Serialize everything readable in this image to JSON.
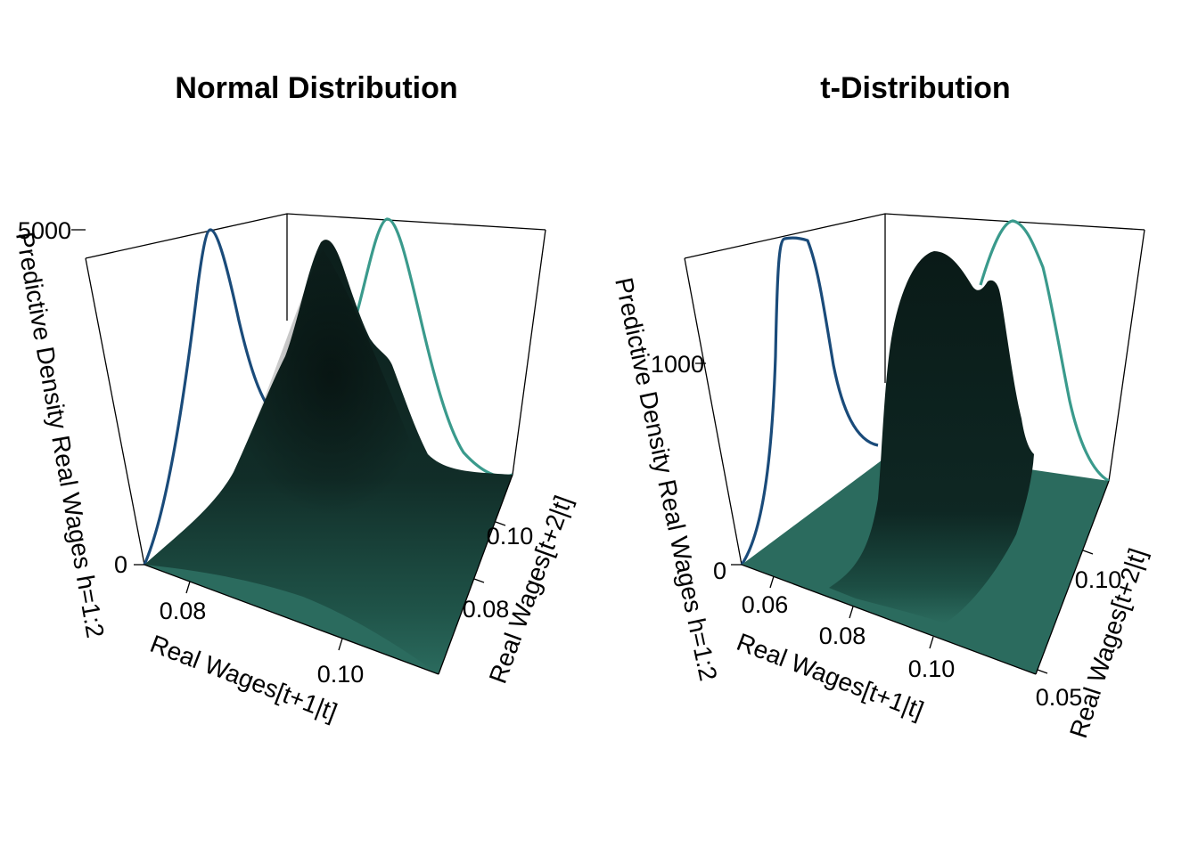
{
  "chart_data": [
    {
      "type": "surface3d",
      "title": "Normal Distribution",
      "xlabel": "Real Wages[t+1|t]",
      "ylabel": "Real Wages[t+2|t]",
      "zlabel": "Predictive Density Real Wages h=1:2",
      "x_ticks": [
        "0.08",
        "0.10"
      ],
      "y_ticks": [
        "0.08",
        "0.10"
      ],
      "z_ticks": [
        "0",
        "5000"
      ],
      "xlim": [
        0.07,
        0.115
      ],
      "ylim": [
        0.07,
        0.11
      ],
      "zlim": [
        0,
        5000
      ],
      "surface_color": "#2b6b5e",
      "marginal_series": [
        {
          "axis": "x",
          "color": "#1a4b7a",
          "x": [
            0.07,
            0.072,
            0.074,
            0.076,
            0.078,
            0.08,
            0.082,
            0.084,
            0.086,
            0.088,
            0.09
          ],
          "density": [
            150,
            650,
            1600,
            2900,
            4100,
            5000,
            4600,
            3700,
            2700,
            1800,
            1000
          ]
        },
        {
          "axis": "y",
          "color": "#3a9a8c",
          "y": [
            0.07,
            0.074,
            0.078,
            0.082,
            0.086,
            0.09,
            0.094,
            0.098,
            0.102,
            0.106,
            0.11
          ],
          "density": [
            700,
            1800,
            3400,
            4700,
            4900,
            4200,
            3300,
            2300,
            1500,
            800,
            400
          ]
        }
      ]
    },
    {
      "type": "surface3d",
      "title": "t-Distribution",
      "xlabel": "Real Wages[t+1|t]",
      "ylabel": "Real Wages[t+2|t]",
      "zlabel": "Predictive Density Real Wages h=1:2",
      "x_ticks": [
        "0.06",
        "0.08",
        "0.10"
      ],
      "y_ticks": [
        "0.05",
        "0.10"
      ],
      "z_ticks": [
        "0",
        "1000"
      ],
      "xlim": [
        0.055,
        0.115
      ],
      "ylim": [
        0.04,
        0.13
      ],
      "zlim": [
        0,
        1600
      ],
      "surface_color": "#2b6b5e",
      "marginal_series": [
        {
          "axis": "x",
          "color": "#1a4b7a",
          "x": [
            0.055,
            0.057,
            0.059,
            0.061,
            0.063,
            0.065,
            0.067,
            0.069,
            0.071,
            0.073,
            0.075
          ],
          "density": [
            100,
            900,
            1500,
            1490,
            1450,
            1200,
            900,
            600,
            400,
            300,
            280
          ]
        },
        {
          "axis": "y",
          "color": "#3a9a8c",
          "y": [
            0.04,
            0.05,
            0.06,
            0.07,
            0.08,
            0.09,
            0.1,
            0.11,
            0.12,
            0.13
          ],
          "density": [
            200,
            400,
            700,
            1100,
            1450,
            1520,
            1300,
            1000,
            550,
            250
          ]
        }
      ]
    }
  ]
}
